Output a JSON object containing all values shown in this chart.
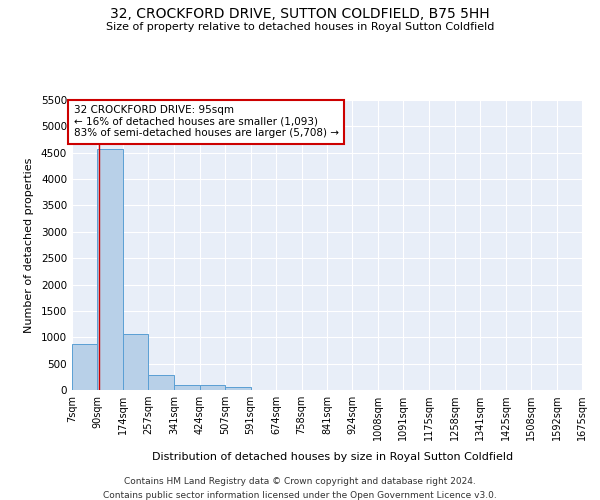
{
  "title": "32, CROCKFORD DRIVE, SUTTON COLDFIELD, B75 5HH",
  "subtitle": "Size of property relative to detached houses in Royal Sutton Coldfield",
  "xlabel": "Distribution of detached houses by size in Royal Sutton Coldfield",
  "ylabel": "Number of detached properties",
  "footnote1": "Contains HM Land Registry data © Crown copyright and database right 2024.",
  "footnote2": "Contains public sector information licensed under the Open Government Licence v3.0.",
  "bar_edges": [
    7,
    90,
    174,
    257,
    341,
    424,
    507,
    591,
    674,
    758,
    841,
    924,
    1008,
    1091,
    1175,
    1258,
    1341,
    1425,
    1508,
    1592,
    1675
  ],
  "bar_heights": [
    880,
    4570,
    1060,
    290,
    90,
    90,
    60,
    0,
    0,
    0,
    0,
    0,
    0,
    0,
    0,
    0,
    0,
    0,
    0,
    0
  ],
  "bar_color": "#b8d0e8",
  "bar_edgecolor": "#5a9fd4",
  "property_size": 95,
  "property_line_color": "#cc0000",
  "annotation_text": "32 CROCKFORD DRIVE: 95sqm\n← 16% of detached houses are smaller (1,093)\n83% of semi-detached houses are larger (5,708) →",
  "annotation_boxcolor": "white",
  "annotation_edgecolor": "#cc0000",
  "ylim": [
    0,
    5500
  ],
  "yticks": [
    0,
    500,
    1000,
    1500,
    2000,
    2500,
    3000,
    3500,
    4000,
    4500,
    5000,
    5500
  ],
  "bg_color": "#ffffff",
  "plot_bg_color": "#e8eef8",
  "grid_color": "#ffffff",
  "tick_labels": [
    "7sqm",
    "90sqm",
    "174sqm",
    "257sqm",
    "341sqm",
    "424sqm",
    "507sqm",
    "591sqm",
    "674sqm",
    "758sqm",
    "841sqm",
    "924sqm",
    "1008sqm",
    "1091sqm",
    "1175sqm",
    "1258sqm",
    "1341sqm",
    "1425sqm",
    "1508sqm",
    "1592sqm",
    "1675sqm"
  ]
}
